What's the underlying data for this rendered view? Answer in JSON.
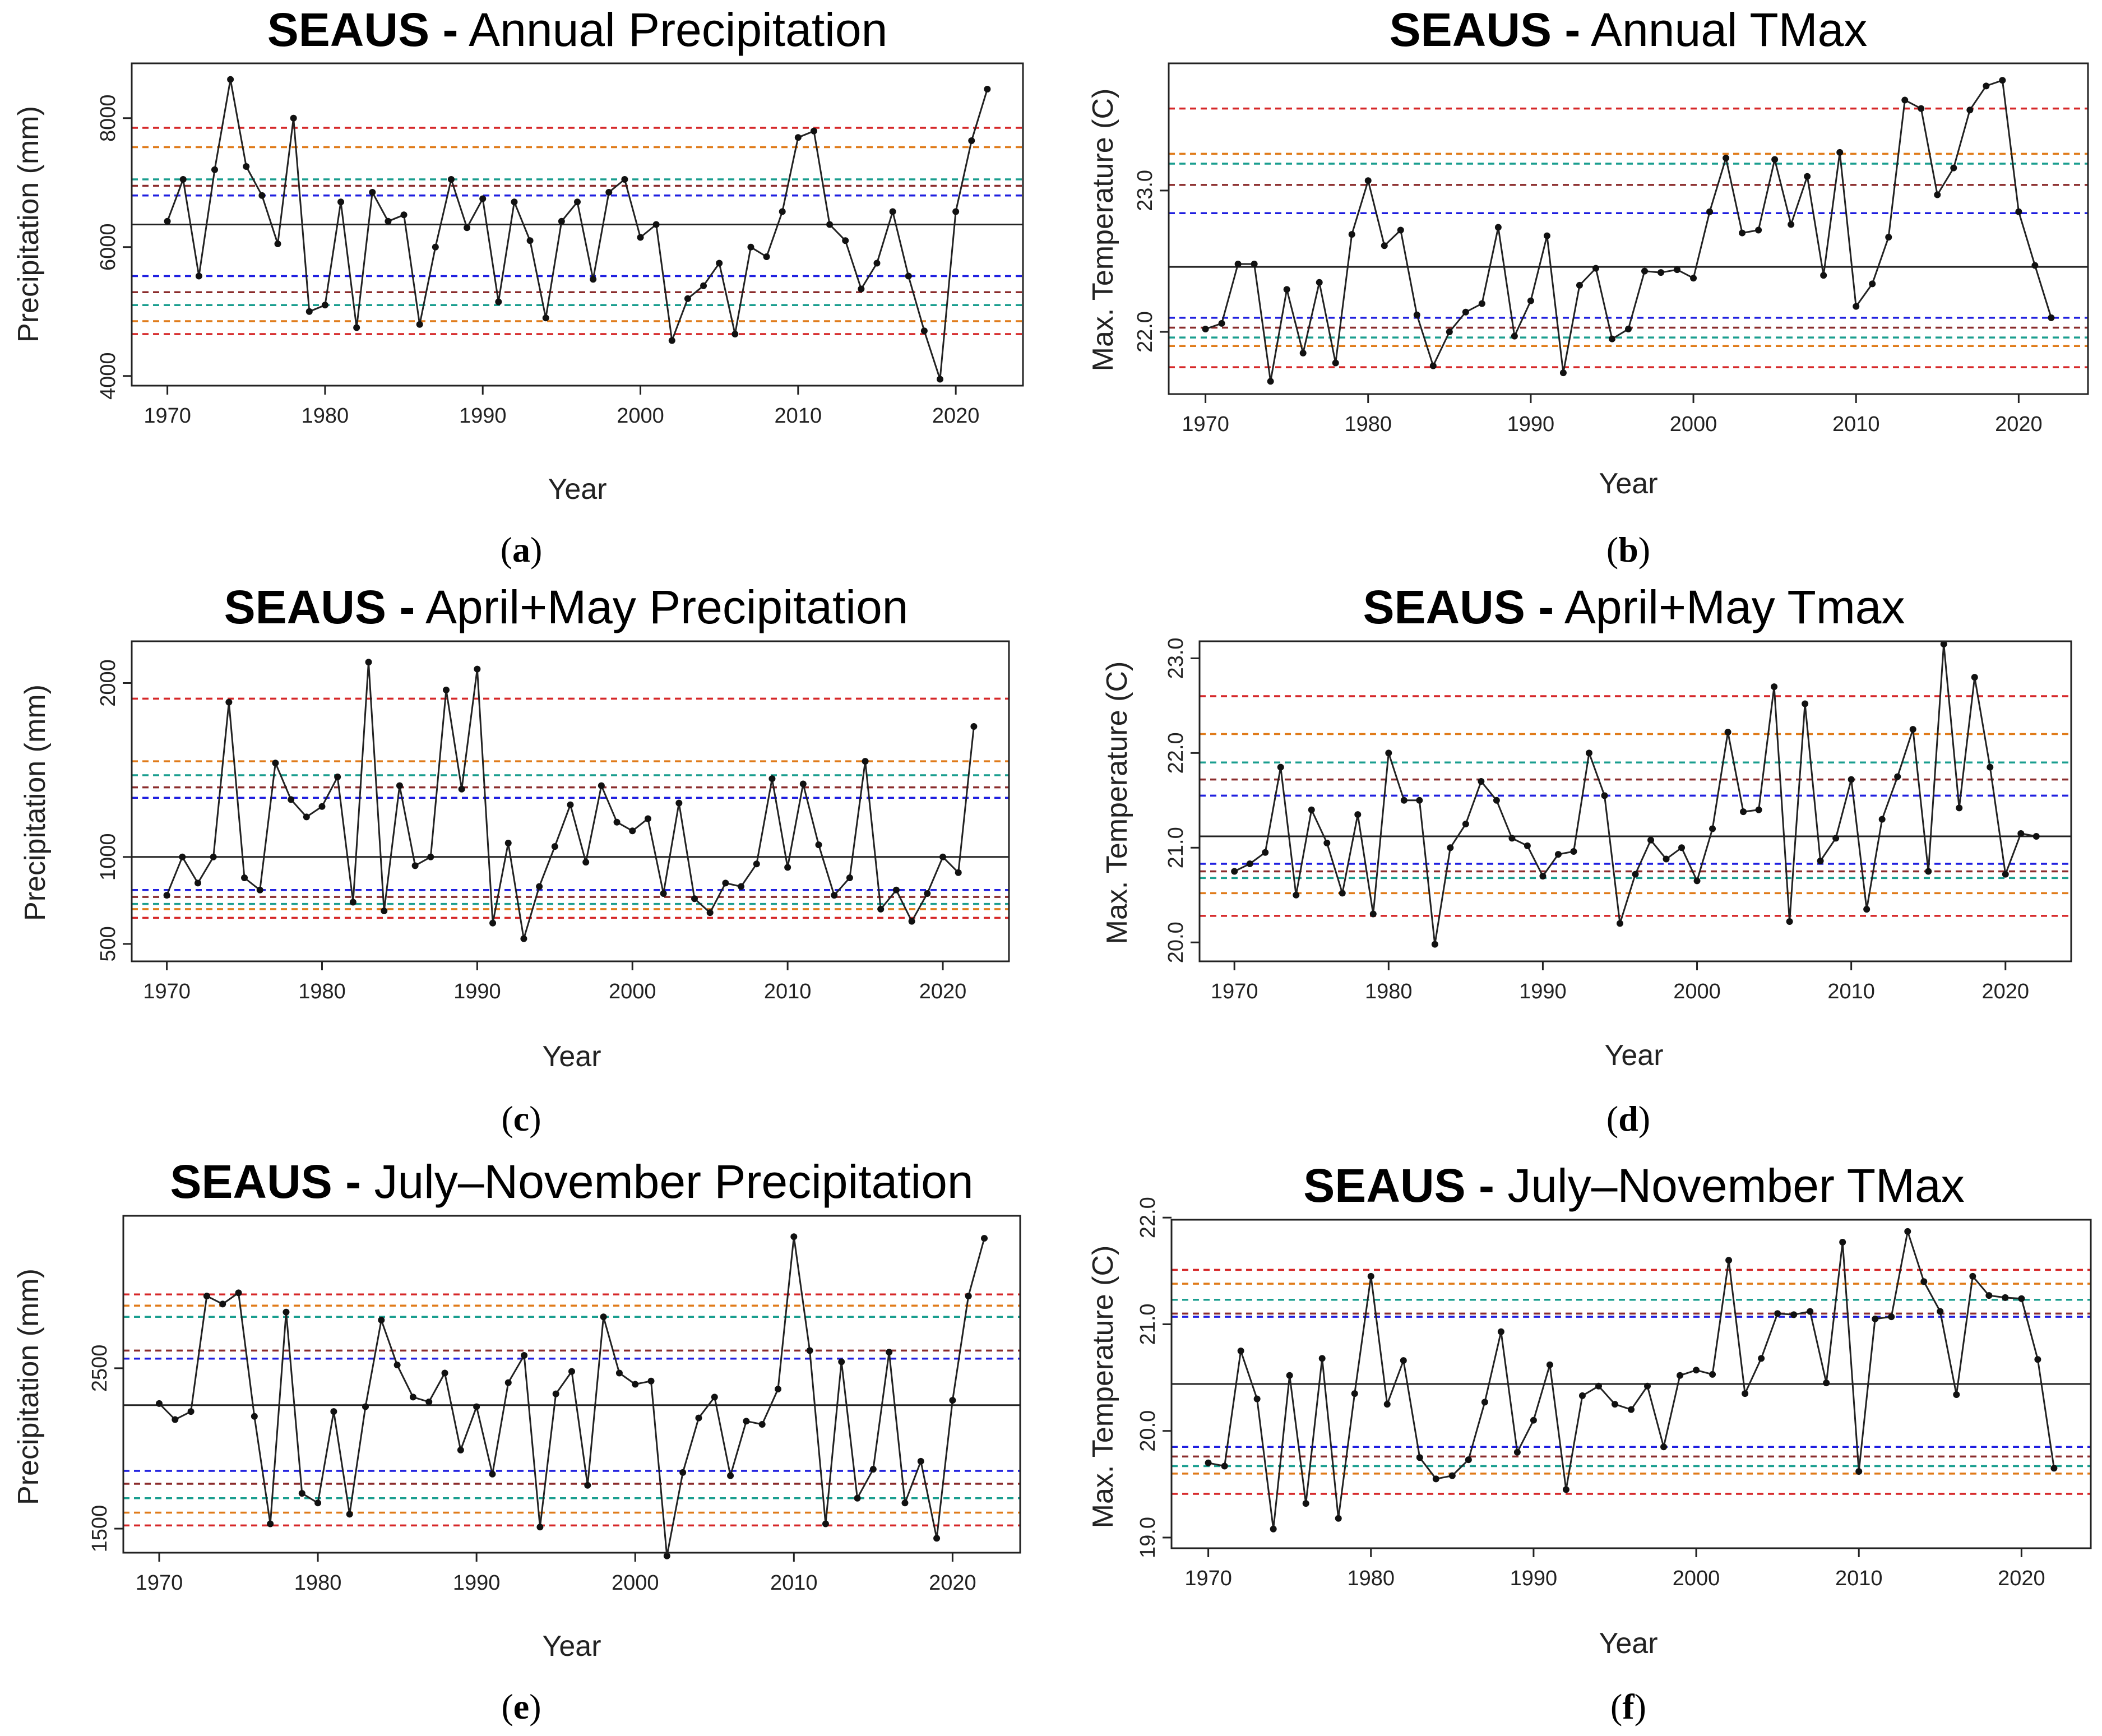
{
  "figure": {
    "region": "SEAUS",
    "title_separator": "-"
  },
  "chart_data": [
    {
      "id": "a",
      "caption_letter": "a",
      "type": "line",
      "title_suffix": "Annual Precipitation",
      "xlabel": "Year",
      "ylabel": "Precipitation (mm)",
      "xlim": [
        1970,
        2022
      ],
      "ylim": [
        3850,
        8850
      ],
      "xticks": [
        1970,
        1980,
        1990,
        2000,
        2010,
        2020
      ],
      "yticks": [
        4000,
        6000,
        8000
      ],
      "ytick_labels": [
        "4000",
        "6000",
        "8000"
      ],
      "x": [
        1970,
        1971,
        1972,
        1973,
        1974,
        1975,
        1976,
        1977,
        1978,
        1979,
        1980,
        1981,
        1982,
        1983,
        1984,
        1985,
        1986,
        1987,
        1988,
        1989,
        1990,
        1991,
        1992,
        1993,
        1994,
        1995,
        1996,
        1997,
        1998,
        1999,
        2000,
        2001,
        2002,
        2003,
        2004,
        2005,
        2006,
        2007,
        2008,
        2009,
        2010,
        2011,
        2012,
        2013,
        2014,
        2015,
        2016,
        2017,
        2018,
        2019,
        2020,
        2021,
        2022
      ],
      "values": [
        6400,
        7050,
        5550,
        7200,
        8600,
        7250,
        6800,
        6050,
        8000,
        5000,
        5100,
        6700,
        4750,
        6850,
        6400,
        6500,
        4800,
        6000,
        7050,
        6300,
        6750,
        5150,
        6700,
        6100,
        4900,
        6400,
        6700,
        5500,
        6850,
        7050,
        6150,
        6350,
        4550,
        5200,
        5400,
        5750,
        4650,
        6000,
        5850,
        6550,
        7700,
        7800,
        6350,
        6100,
        5350,
        5750,
        6550,
        5550,
        4700,
        3950,
        6550,
        7650,
        8450
      ],
      "mean": 6350,
      "reference_lines": [
        {
          "value": 7850,
          "color": "#d62728"
        },
        {
          "value": 7550,
          "color": "#e07b1a"
        },
        {
          "value": 7050,
          "color": "#1a9e8f"
        },
        {
          "value": 6950,
          "color": "#8b2c2c"
        },
        {
          "value": 6800,
          "color": "#1f1fe0"
        },
        {
          "value": 5550,
          "color": "#1f1fe0"
        },
        {
          "value": 5300,
          "color": "#8b2c2c"
        },
        {
          "value": 5100,
          "color": "#1a9e8f"
        },
        {
          "value": 4850,
          "color": "#e07b1a"
        },
        {
          "value": 4650,
          "color": "#d62728"
        }
      ]
    },
    {
      "id": "b",
      "caption_letter": "b",
      "type": "line",
      "title_suffix": "Annual TMax",
      "xlabel": "Year",
      "ylabel": "Max. Temperature (C)",
      "xlim": [
        1970,
        2022
      ],
      "ylim": [
        21.56,
        23.9
      ],
      "xticks": [
        1970,
        1980,
        1990,
        2000,
        2010,
        2020
      ],
      "yticks": [
        22.0,
        23.0
      ],
      "ytick_labels": [
        "22.0",
        "23.0"
      ],
      "x": [
        1970,
        1971,
        1972,
        1973,
        1974,
        1975,
        1976,
        1977,
        1978,
        1979,
        1980,
        1981,
        1982,
        1983,
        1984,
        1985,
        1986,
        1987,
        1988,
        1989,
        1990,
        1991,
        1992,
        1993,
        1994,
        1995,
        1996,
        1997,
        1998,
        1999,
        2000,
        2001,
        2002,
        2003,
        2004,
        2005,
        2006,
        2007,
        2008,
        2009,
        2010,
        2011,
        2012,
        2013,
        2014,
        2015,
        2016,
        2017,
        2018,
        2019,
        2020,
        2021,
        2022
      ],
      "values": [
        22.02,
        22.06,
        22.48,
        22.48,
        21.65,
        22.3,
        21.85,
        22.35,
        21.78,
        22.69,
        23.07,
        22.61,
        22.72,
        22.12,
        21.76,
        22.0,
        22.14,
        22.2,
        22.74,
        21.97,
        22.22,
        22.68,
        21.71,
        22.33,
        22.45,
        21.95,
        22.02,
        22.43,
        22.42,
        22.44,
        22.38,
        22.85,
        23.23,
        22.7,
        22.72,
        23.22,
        22.76,
        23.1,
        22.4,
        23.27,
        22.18,
        22.34,
        22.67,
        23.64,
        23.58,
        22.97,
        23.16,
        23.57,
        23.74,
        23.78,
        22.85,
        22.47,
        22.1
      ],
      "mean": 22.46,
      "reference_lines": [
        {
          "value": 23.58,
          "color": "#d62728"
        },
        {
          "value": 23.26,
          "color": "#e07b1a"
        },
        {
          "value": 23.19,
          "color": "#1a9e8f"
        },
        {
          "value": 23.04,
          "color": "#8b2c2c"
        },
        {
          "value": 22.84,
          "color": "#1f1fe0"
        },
        {
          "value": 22.1,
          "color": "#1f1fe0"
        },
        {
          "value": 22.03,
          "color": "#8b2c2c"
        },
        {
          "value": 21.96,
          "color": "#1a9e8f"
        },
        {
          "value": 21.9,
          "color": "#e07b1a"
        },
        {
          "value": 21.75,
          "color": "#d62728"
        }
      ]
    },
    {
      "id": "c",
      "caption_letter": "c",
      "type": "line",
      "title_suffix": "April+May Precipitation",
      "xlabel": "Year",
      "ylabel": "Precipitation (mm)",
      "xlim": [
        1970,
        2022
      ],
      "ylim": [
        400,
        2240
      ],
      "xticks": [
        1970,
        1980,
        1990,
        2000,
        2010,
        2020
      ],
      "yticks": [
        500,
        1000,
        2000
      ],
      "ytick_labels": [
        "500",
        "1000",
        "2000"
      ],
      "x": [
        1970,
        1971,
        1972,
        1973,
        1974,
        1975,
        1976,
        1977,
        1978,
        1979,
        1980,
        1981,
        1982,
        1983,
        1984,
        1985,
        1986,
        1987,
        1988,
        1989,
        1990,
        1991,
        1992,
        1993,
        1994,
        1995,
        1996,
        1997,
        1998,
        1999,
        2000,
        2001,
        2002,
        2003,
        2004,
        2005,
        2006,
        2007,
        2008,
        2009,
        2010,
        2011,
        2012,
        2013,
        2014,
        2015,
        2016,
        2017,
        2018,
        2019,
        2020,
        2021,
        2022
      ],
      "values": [
        780,
        1000,
        850,
        1000,
        1890,
        880,
        810,
        1540,
        1330,
        1230,
        1290,
        1460,
        740,
        2120,
        690,
        1410,
        950,
        1000,
        1960,
        1390,
        2080,
        620,
        1080,
        530,
        830,
        1060,
        1300,
        970,
        1410,
        1200,
        1150,
        1220,
        790,
        1310,
        760,
        680,
        850,
        830,
        960,
        1450,
        940,
        1420,
        1070,
        780,
        880,
        1550,
        700,
        810,
        630,
        790,
        1000,
        910,
        1750
      ],
      "mean": 1000,
      "reference_lines": [
        {
          "value": 1910,
          "color": "#d62728"
        },
        {
          "value": 1550,
          "color": "#e07b1a"
        },
        {
          "value": 1470,
          "color": "#1a9e8f"
        },
        {
          "value": 1400,
          "color": "#8b2c2c"
        },
        {
          "value": 1340,
          "color": "#1f1fe0"
        },
        {
          "value": 810,
          "color": "#1f1fe0"
        },
        {
          "value": 770,
          "color": "#8b2c2c"
        },
        {
          "value": 730,
          "color": "#1a9e8f"
        },
        {
          "value": 700,
          "color": "#e07b1a"
        },
        {
          "value": 650,
          "color": "#d62728"
        }
      ]
    },
    {
      "id": "d",
      "caption_letter": "d",
      "type": "line",
      "title_suffix": "April+May Tmax",
      "xlabel": "Year",
      "ylabel": "Max. Temperature (C)",
      "xlim": [
        1970,
        2022
      ],
      "ylim": [
        19.8,
        23.18
      ],
      "xticks": [
        1970,
        1980,
        1990,
        2000,
        2010,
        2020
      ],
      "yticks": [
        20.0,
        21.0,
        22.0,
        23.0
      ],
      "ytick_labels": [
        "20.0",
        "21.0",
        "22.0",
        "23.0"
      ],
      "x": [
        1970,
        1971,
        1972,
        1973,
        1974,
        1975,
        1976,
        1977,
        1978,
        1979,
        1980,
        1981,
        1982,
        1983,
        1984,
        1985,
        1986,
        1987,
        1988,
        1989,
        1990,
        1991,
        1992,
        1993,
        1994,
        1995,
        1996,
        1997,
        1998,
        1999,
        2000,
        2001,
        2002,
        2003,
        2004,
        2005,
        2006,
        2007,
        2008,
        2009,
        2010,
        2011,
        2012,
        2013,
        2014,
        2015,
        2016,
        2017,
        2018,
        2019,
        2020,
        2021,
        2022
      ],
      "values": [
        20.75,
        20.83,
        20.95,
        21.85,
        20.5,
        21.4,
        21.05,
        20.52,
        21.35,
        20.3,
        22.0,
        21.5,
        21.5,
        19.98,
        21.0,
        21.25,
        21.7,
        21.5,
        21.1,
        21.02,
        20.7,
        20.93,
        20.96,
        22.0,
        21.55,
        20.2,
        20.72,
        21.08,
        20.88,
        21.0,
        20.65,
        21.2,
        22.22,
        21.38,
        21.4,
        22.7,
        20.22,
        22.52,
        20.86,
        21.1,
        21.72,
        20.35,
        21.3,
        21.75,
        22.25,
        20.75,
        23.15,
        21.42,
        22.8,
        21.85,
        20.72,
        21.15,
        21.12
      ],
      "mean": 21.12,
      "reference_lines": [
        {
          "value": 22.6,
          "color": "#d62728"
        },
        {
          "value": 22.2,
          "color": "#e07b1a"
        },
        {
          "value": 21.9,
          "color": "#1a9e8f"
        },
        {
          "value": 21.72,
          "color": "#8b2c2c"
        },
        {
          "value": 21.55,
          "color": "#1f1fe0"
        },
        {
          "value": 20.83,
          "color": "#1f1fe0"
        },
        {
          "value": 20.75,
          "color": "#8b2c2c"
        },
        {
          "value": 20.68,
          "color": "#1a9e8f"
        },
        {
          "value": 20.52,
          "color": "#e07b1a"
        },
        {
          "value": 20.28,
          "color": "#d62728"
        }
      ]
    },
    {
      "id": "e",
      "caption_letter": "e",
      "type": "line",
      "title_suffix": "July–November Precipitation",
      "xlabel": "Year",
      "ylabel": "Precipitation (mm)",
      "xlim": [
        1970,
        2022
      ],
      "ylim": [
        1350,
        3450
      ],
      "xticks": [
        1970,
        1980,
        1990,
        2000,
        2010,
        2020
      ],
      "yticks": [
        1500,
        2500
      ],
      "ytick_labels": [
        "1500",
        "2500"
      ],
      "x": [
        1970,
        1971,
        1972,
        1973,
        1974,
        1975,
        1976,
        1977,
        1978,
        1979,
        1980,
        1981,
        1982,
        1983,
        1984,
        1985,
        1986,
        1987,
        1988,
        1989,
        1990,
        1991,
        1992,
        1993,
        1994,
        1995,
        1996,
        1997,
        1998,
        1999,
        2000,
        2001,
        2002,
        2003,
        2004,
        2005,
        2006,
        2007,
        2008,
        2009,
        2010,
        2011,
        2012,
        2013,
        2014,
        2015,
        2016,
        2017,
        2018,
        2019,
        2020,
        2021,
        2022
      ],
      "values": [
        2280,
        2180,
        2230,
        2950,
        2900,
        2970,
        2200,
        1530,
        2850,
        1720,
        1660,
        2230,
        1590,
        2260,
        2800,
        2520,
        2320,
        2290,
        2470,
        1990,
        2260,
        1840,
        2410,
        2580,
        1510,
        2340,
        2480,
        1770,
        2820,
        2470,
        2400,
        2420,
        1330,
        1850,
        2190,
        2320,
        1830,
        2170,
        2150,
        2370,
        3320,
        2610,
        1530,
        2540,
        1690,
        1870,
        2600,
        1660,
        1920,
        1440,
        2300,
        2950,
        3310
      ],
      "mean": 2270,
      "reference_lines": [
        {
          "value": 2960,
          "color": "#d62728"
        },
        {
          "value": 2890,
          "color": "#e07b1a"
        },
        {
          "value": 2820,
          "color": "#1a9e8f"
        },
        {
          "value": 2610,
          "color": "#8b2c2c"
        },
        {
          "value": 2560,
          "color": "#1f1fe0"
        },
        {
          "value": 1860,
          "color": "#1f1fe0"
        },
        {
          "value": 1780,
          "color": "#8b2c2c"
        },
        {
          "value": 1690,
          "color": "#1a9e8f"
        },
        {
          "value": 1600,
          "color": "#e07b1a"
        },
        {
          "value": 1520,
          "color": "#d62728"
        }
      ]
    },
    {
      "id": "f",
      "caption_letter": "f",
      "type": "line",
      "title_suffix": "July–November TMax",
      "xlabel": "Year",
      "ylabel": "Max. Temperature (C)",
      "xlim": [
        1970,
        2022
      ],
      "ylim": [
        18.9,
        21.98
      ],
      "xticks": [
        1970,
        1980,
        1990,
        2000,
        2010,
        2020
      ],
      "yticks": [
        19.0,
        20.0,
        21.0,
        22.0
      ],
      "ytick_labels": [
        "19.0",
        "20.0",
        "21.0",
        "22.0"
      ],
      "x": [
        1970,
        1971,
        1972,
        1973,
        1974,
        1975,
        1976,
        1977,
        1978,
        1979,
        1980,
        1981,
        1982,
        1983,
        1984,
        1985,
        1986,
        1987,
        1988,
        1989,
        1990,
        1991,
        1992,
        1993,
        1994,
        1995,
        1996,
        1997,
        1998,
        1999,
        2000,
        2001,
        2002,
        2003,
        2004,
        2005,
        2006,
        2007,
        2008,
        2009,
        2010,
        2011,
        2012,
        2013,
        2014,
        2015,
        2016,
        2017,
        2018,
        2019,
        2020,
        2021,
        2022
      ],
      "values": [
        19.7,
        19.67,
        20.75,
        20.3,
        19.08,
        20.52,
        19.32,
        20.68,
        19.18,
        20.35,
        21.45,
        20.25,
        20.66,
        19.75,
        19.55,
        19.58,
        19.73,
        20.27,
        20.93,
        19.8,
        20.1,
        20.62,
        19.45,
        20.33,
        20.42,
        20.25,
        20.2,
        20.42,
        19.85,
        20.52,
        20.57,
        20.53,
        21.6,
        20.35,
        20.68,
        21.1,
        21.09,
        21.12,
        20.45,
        21.77,
        19.62,
        21.05,
        21.07,
        21.87,
        21.4,
        21.12,
        20.34,
        21.45,
        21.27,
        21.25,
        21.24,
        20.67,
        19.65
      ],
      "mean": 20.44,
      "reference_lines": [
        {
          "value": 21.51,
          "color": "#d62728"
        },
        {
          "value": 21.38,
          "color": "#e07b1a"
        },
        {
          "value": 21.23,
          "color": "#1a9e8f"
        },
        {
          "value": 21.1,
          "color": "#8b2c2c"
        },
        {
          "value": 21.07,
          "color": "#1f1fe0"
        },
        {
          "value": 19.85,
          "color": "#1f1fe0"
        },
        {
          "value": 19.76,
          "color": "#8b2c2c"
        },
        {
          "value": 19.67,
          "color": "#1a9e8f"
        },
        {
          "value": 19.6,
          "color": "#e07b1a"
        },
        {
          "value": 19.41,
          "color": "#d62728"
        }
      ]
    }
  ]
}
